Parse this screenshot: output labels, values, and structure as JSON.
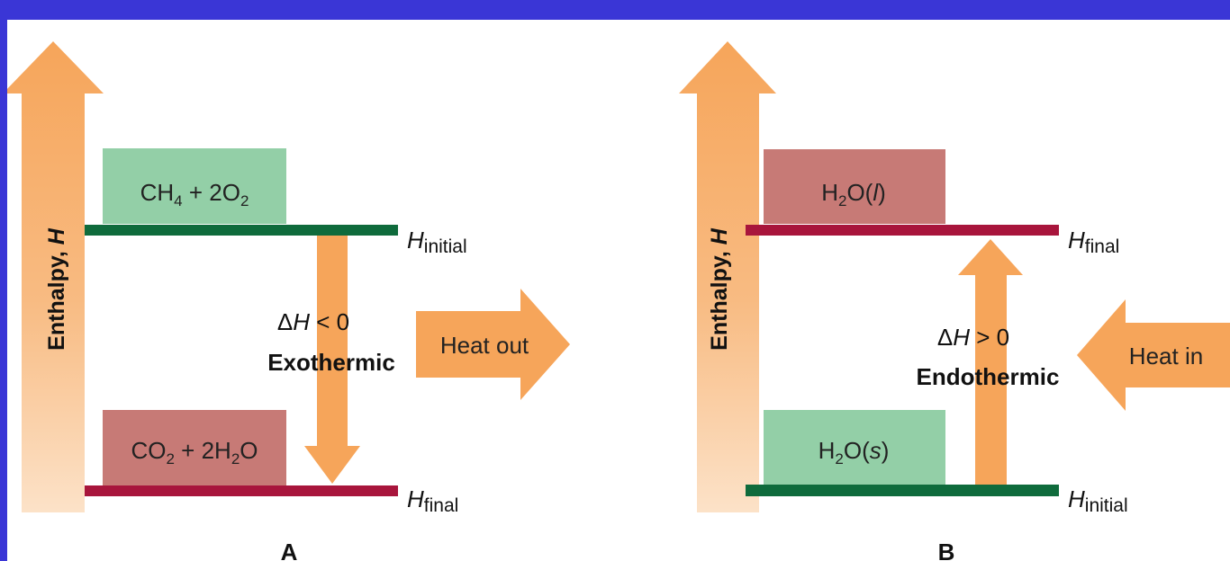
{
  "panel_a": {
    "axis_label": "Enthalpy, ",
    "axis_symbol": "H",
    "top_box": {
      "parts": [
        "CH",
        "4",
        " + 2O",
        "2"
      ]
    },
    "bottom_box": {
      "parts": [
        "CO",
        "2",
        " + 2H",
        "2",
        "O"
      ]
    },
    "top_level": {
      "symbol": "H",
      "subscript": "initial"
    },
    "bottom_level": {
      "symbol": "H",
      "subscript": "final"
    },
    "delta": {
      "prefix": "Δ",
      "symbol": "H",
      "relation": " < 0"
    },
    "type_label": "Exothermic",
    "heat_label": "Heat out",
    "panel_label": "A"
  },
  "panel_b": {
    "axis_label": "Enthalpy, ",
    "axis_symbol": "H",
    "top_box": {
      "parts": [
        "H",
        "2",
        "O(",
        "l",
        ")"
      ]
    },
    "bottom_box": {
      "parts": [
        "H",
        "2",
        "O(",
        "s",
        ")"
      ]
    },
    "top_level": {
      "symbol": "H",
      "subscript": "final"
    },
    "bottom_level": {
      "symbol": "H",
      "subscript": "initial"
    },
    "delta": {
      "prefix": "Δ",
      "symbol": "H",
      "relation": " > 0"
    },
    "type_label": "Endothermic",
    "heat_label": "Heat in",
    "panel_label": "B"
  },
  "colors": {
    "background": "#3a36d6",
    "arrow": "#f6a55a",
    "arrow_light": "#fbd6b0",
    "box_green": "#93cfa7",
    "box_red": "#c77a76",
    "line_green": "#0f6b3c",
    "line_red": "#a8153c"
  }
}
